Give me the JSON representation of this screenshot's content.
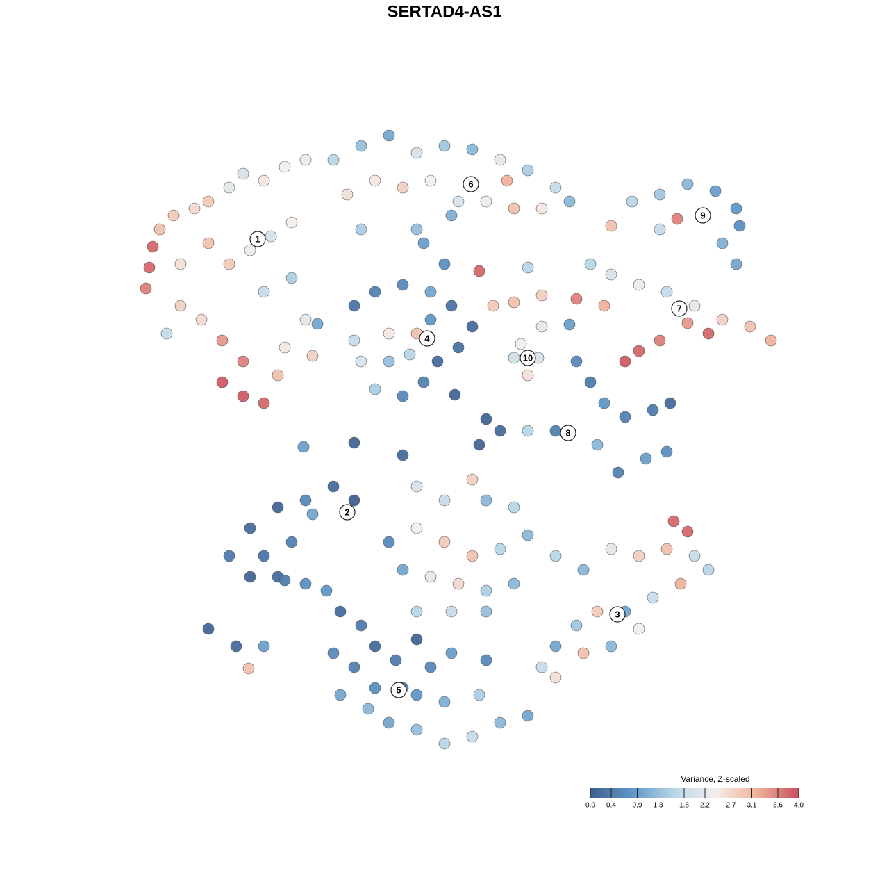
{
  "chart_data": {
    "type": "scatter",
    "title": "SERTAD4-AS1",
    "xlim": [
      0,
      128
    ],
    "ylim": [
      0,
      128
    ],
    "x": [
      22,
      21.5,
      21,
      23,
      25,
      28,
      30,
      33,
      35,
      38,
      41,
      44,
      30,
      33,
      36,
      39,
      42,
      26,
      29,
      32,
      35,
      32,
      35,
      38,
      40,
      41,
      26,
      38,
      42,
      44,
      24,
      45,
      48,
      52,
      56,
      60,
      64,
      68,
      72,
      76,
      80,
      82,
      50,
      54,
      58,
      62,
      66,
      70,
      74,
      78,
      52,
      60,
      65,
      69,
      73,
      61,
      64,
      88,
      91,
      95,
      99,
      103,
      106,
      106.5,
      104,
      97.5,
      95,
      101,
      106,
      85,
      88,
      92,
      96,
      100,
      104,
      108,
      111,
      102,
      99,
      95,
      92,
      90,
      87,
      83,
      78,
      74,
      71,
      75,
      77.5,
      76,
      78,
      74,
      51,
      54,
      58,
      62,
      65,
      68,
      66,
      63,
      61,
      58,
      54,
      52,
      51,
      56,
      60,
      59,
      56,
      62,
      83,
      85,
      87,
      90,
      94,
      96.5,
      96,
      93,
      89,
      86,
      80,
      76,
      72,
      69,
      33,
      36,
      40,
      44,
      48,
      51,
      38,
      42,
      45,
      40,
      44,
      47,
      30,
      34,
      38,
      35.8,
      41,
      36,
      80,
      84,
      88,
      92,
      96,
      100,
      102,
      98,
      94,
      90,
      86,
      83,
      80,
      78,
      80,
      84,
      88,
      92,
      97,
      99,
      60,
      64,
      68,
      70,
      74,
      60,
      64,
      68,
      72,
      76,
      58,
      62,
      66,
      70,
      74,
      56,
      60,
      65,
      70,
      49,
      52,
      48,
      51,
      54,
      57,
      60,
      62,
      65,
      49,
      53,
      56,
      60,
      64,
      68,
      72,
      76,
      69,
      64,
      60,
      54,
      58,
      70,
      43.7,
      51,
      58,
      65.5,
      70,
      76,
      82,
      45.7
    ],
    "y": [
      92.5,
      89.5,
      86.5,
      95,
      97,
      98,
      99,
      101,
      103,
      102,
      104,
      105,
      93,
      90,
      92,
      94,
      96,
      84,
      82,
      79,
      76,
      73,
      71,
      70,
      74,
      78,
      90,
      86,
      88,
      82,
      80,
      76.8,
      105,
      107,
      108.5,
      106,
      107,
      106.5,
      105,
      103.5,
      101,
      99,
      100,
      102,
      101,
      102,
      99,
      99,
      98,
      98,
      95,
      95,
      97,
      89,
      102,
      93,
      90,
      95.5,
      99,
      100,
      101.5,
      100.5,
      98,
      95.5,
      93,
      96.5,
      95,
      97,
      90,
      90,
      88.5,
      87,
      86,
      84,
      82,
      81,
      79,
      80,
      81.5,
      79,
      77.5,
      76,
      84,
      85,
      85.5,
      84.5,
      84,
      78.5,
      76.5,
      74,
      81,
      76.5,
      84,
      86,
      87,
      86,
      84,
      81,
      78,
      76,
      73,
      71,
      72,
      76,
      79,
      80,
      80,
      77,
      76,
      82,
      76,
      73,
      70,
      68,
      69,
      70,
      63,
      62,
      60,
      64,
      66,
      66,
      66,
      64,
      48,
      52,
      55,
      56,
      58,
      56,
      48,
      50,
      54,
      45,
      44,
      43,
      37.5,
      35,
      35,
      31.8,
      44.5,
      45,
      48,
      46,
      49,
      48,
      49,
      48,
      46,
      44,
      42,
      40,
      40,
      38,
      35,
      32,
      30.5,
      34,
      35,
      37.5,
      53,
      51.5,
      58,
      56,
      59,
      56,
      55,
      52,
      50,
      48,
      49,
      51,
      46,
      45,
      44,
      43,
      44,
      50,
      40,
      40,
      40,
      40,
      38,
      34,
      32,
      35,
      33,
      36,
      32,
      34,
      28,
      26,
      24,
      23,
      21,
      22,
      24,
      25,
      28,
      27,
      28,
      29,
      29,
      33,
      63.7,
      64.3,
      62.5,
      71.2,
      67.7,
      89.5,
      81.3,
      81.4
    ],
    "values": [
      3.8,
      3.8,
      3.6,
      3.0,
      2.9,
      2.7,
      2.9,
      2.2,
      2.0,
      2.5,
      2.4,
      2.3,
      3.0,
      2.9,
      2.3,
      2.0,
      2.4,
      2.8,
      2.7,
      3.4,
      3.6,
      3.9,
      3.9,
      3.8,
      3.0,
      2.5,
      2.6,
      1.8,
      1.5,
      2.2,
      1.8,
      2.8,
      1.6,
      1.3,
      1.0,
      2.0,
      1.4,
      1.2,
      2.2,
      1.5,
      1.8,
      1.2,
      2.6,
      2.5,
      2.8,
      2.4,
      2.0,
      2.3,
      3.0,
      2.5,
      1.5,
      1.3,
      1.1,
      3.8,
      3.2,
      0.9,
      0.7,
      3.0,
      1.6,
      1.4,
      1.2,
      0.9,
      0.8,
      0.7,
      1.1,
      3.6,
      1.8,
      1.5,
      1.0,
      1.6,
      2.0,
      2.3,
      1.8,
      2.2,
      2.8,
      3.0,
      3.2,
      3.8,
      3.4,
      3.6,
      3.8,
      3.9,
      3.2,
      3.6,
      2.8,
      3.0,
      2.9,
      2.4,
      2.0,
      2.6,
      2.2,
      1.9,
      0.3,
      0.5,
      0.6,
      1.0,
      0.3,
      0.2,
      0.3,
      0.2,
      0.5,
      0.6,
      1.5,
      2.0,
      1.8,
      2.5,
      3.0,
      1.6,
      1.3,
      0.8,
      0.6,
      0.4,
      0.8,
      0.5,
      0.4,
      0.2,
      0.7,
      0.9,
      0.5,
      1.2,
      0.5,
      1.6,
      0.2,
      0.1,
      0.4,
      0.2,
      0.1,
      0.6,
      0.2,
      0.0,
      0.3,
      0.5,
      1.0,
      0.2,
      0.7,
      0.8,
      0.1,
      0.2,
      0.9,
      3.0,
      0.4,
      0.1,
      1.6,
      1.2,
      2.2,
      2.8,
      3.0,
      1.8,
      1.6,
      3.2,
      1.8,
      1.0,
      2.9,
      1.4,
      1.0,
      1.8,
      2.6,
      3.0,
      1.2,
      2.4,
      3.8,
      3.8,
      2.0,
      1.8,
      2.8,
      1.2,
      1.6,
      2.4,
      2.9,
      3.0,
      1.6,
      1.2,
      1.0,
      2.2,
      2.7,
      1.5,
      1.2,
      0.6,
      1.6,
      1.8,
      1.3,
      0.2,
      0.4,
      0.6,
      0.5,
      0.2,
      0.4,
      0.1,
      0.6,
      0.9,
      1.0,
      1.2,
      1.0,
      1.3,
      1.6,
      1.8,
      1.2,
      1.0,
      1.5,
      1.1,
      0.8,
      0.7,
      0.5,
      0.6,
      0.9,
      0.1,
      0.2,
      0.1,
      0.1,
      1.6,
      0.9,
      1.0
    ],
    "clusters": [
      {
        "label": "1",
        "x": 37.1,
        "y": 93.6
      },
      {
        "label": "2",
        "x": 50,
        "y": 54.3
      },
      {
        "label": "3",
        "x": 88.9,
        "y": 39.6
      },
      {
        "label": "4",
        "x": 61.5,
        "y": 79.3
      },
      {
        "label": "5",
        "x": 57.4,
        "y": 28.7
      },
      {
        "label": "6",
        "x": 67.8,
        "y": 101.5
      },
      {
        "label": "7",
        "x": 97.8,
        "y": 83.6
      },
      {
        "label": "8",
        "x": 81.8,
        "y": 65.7
      },
      {
        "label": "9",
        "x": 101.2,
        "y": 97
      },
      {
        "label": "10",
        "x": 76,
        "y": 76.5
      }
    ],
    "colorbar": {
      "title": "Variance, Z-scaled",
      "lim": [
        0,
        4
      ],
      "colors": [
        "#3f5f8e",
        "#5f97c8",
        "#b7d6e8",
        "#f4eeeb",
        "#f0b29a",
        "#c94f5d"
      ],
      "ticks": [
        {
          "value": 0,
          "label": "0.0"
        },
        0.4,
        0.9,
        1.3,
        1.8,
        2.2,
        2.7,
        3.1,
        3.6,
        {
          "value": 4,
          "label": "4.0"
        }
      ]
    }
  }
}
